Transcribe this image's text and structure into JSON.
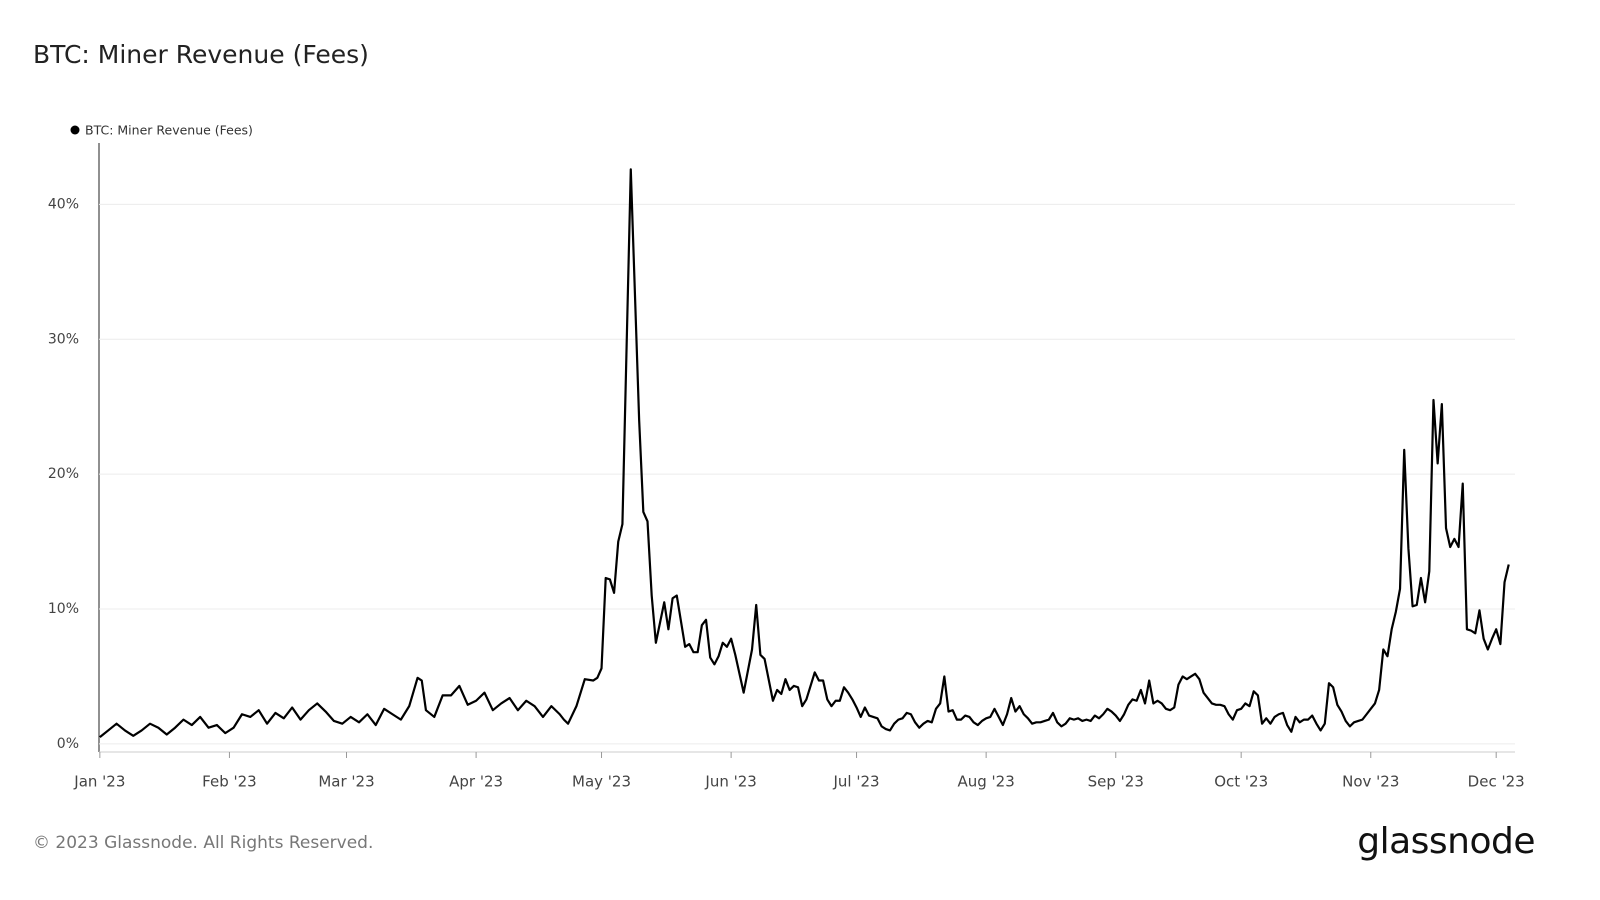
{
  "chart_data": {
    "type": "line",
    "title": "BTC: Miner Revenue (Fees)",
    "x": [
      0,
      2,
      4,
      6,
      8,
      10,
      12,
      14,
      16,
      18,
      20,
      22,
      24,
      26,
      28,
      30,
      32,
      34,
      36,
      38,
      40,
      42,
      44,
      46,
      48,
      50,
      52,
      54,
      56,
      58,
      60,
      62,
      64,
      66,
      68,
      70,
      72,
      74,
      76,
      77,
      78,
      80,
      82,
      84,
      86,
      88,
      90,
      92,
      94,
      96,
      98,
      100,
      102,
      104,
      106,
      108,
      110,
      111,
      112,
      114,
      116,
      118,
      119,
      120,
      121,
      122,
      123,
      124,
      125,
      127,
      129,
      130,
      131,
      132,
      133,
      134,
      135,
      136,
      137,
      138,
      140,
      141,
      142,
      143,
      144,
      145,
      146,
      147,
      148,
      149,
      150,
      151,
      152,
      154,
      156,
      157,
      158,
      159,
      161,
      162,
      163,
      164,
      165,
      166,
      167,
      168,
      169,
      171,
      172,
      173,
      174,
      175,
      176,
      177,
      178,
      179,
      180,
      181,
      182,
      183,
      184,
      185,
      186,
      187,
      188,
      189,
      190,
      191,
      192,
      193,
      194,
      195,
      196,
      197,
      198,
      199,
      200,
      201,
      202,
      203,
      204,
      205,
      206,
      207,
      208,
      209,
      210,
      211,
      212,
      213,
      214,
      215,
      216,
      217,
      218,
      219,
      220,
      221,
      222,
      223,
      224,
      225,
      226,
      227,
      228,
      229,
      230,
      231,
      232,
      233,
      234,
      235,
      236,
      237,
      238,
      239,
      240,
      241,
      242,
      243,
      244,
      245,
      246,
      247,
      248,
      249,
      250,
      251,
      252,
      253,
      254,
      255,
      256,
      257,
      258,
      259,
      260,
      261,
      262,
      263,
      264,
      265,
      266,
      267,
      268,
      269,
      270,
      271,
      272,
      273,
      274,
      275,
      276,
      277,
      278,
      279,
      280,
      281,
      282,
      283,
      284,
      285,
      286,
      287,
      288,
      289,
      290,
      291,
      292,
      293,
      294,
      295,
      296,
      297,
      298,
      299,
      300,
      301,
      302,
      303,
      304,
      305,
      306,
      307,
      308,
      309,
      310,
      311,
      312,
      313,
      314,
      315,
      316,
      317,
      318,
      319,
      320,
      321,
      322,
      323,
      324,
      325,
      326,
      327,
      328,
      329,
      330,
      331,
      332,
      333,
      334,
      335,
      336,
      337
    ],
    "series": [
      {
        "name": "BTC: Miner Revenue (Fees)",
        "color": "#000000",
        "values": [
          0.5,
          1.0,
          1.5,
          1.0,
          0.6,
          1.0,
          1.5,
          1.2,
          0.7,
          1.2,
          1.8,
          1.4,
          2.0,
          1.2,
          1.4,
          0.8,
          1.2,
          2.2,
          2.0,
          2.5,
          1.5,
          2.3,
          1.9,
          2.7,
          1.8,
          2.5,
          3.0,
          2.4,
          1.7,
          1.5,
          2.0,
          1.6,
          2.2,
          1.4,
          2.6,
          2.2,
          1.8,
          2.8,
          4.9,
          4.7,
          2.5,
          2.0,
          3.6,
          3.6,
          4.3,
          2.9,
          3.2,
          3.8,
          2.5,
          3.0,
          3.4,
          2.5,
          3.2,
          2.8,
          2.0,
          2.8,
          2.2,
          1.8,
          1.5,
          2.8,
          4.8,
          4.7,
          4.9,
          5.6,
          12.3,
          12.2,
          11.2,
          15.0,
          16.3,
          42.6,
          24.0,
          17.2,
          16.5,
          11.0,
          7.5,
          9.0,
          10.5,
          8.5,
          10.8,
          11.0,
          7.2,
          7.4,
          6.8,
          6.8,
          8.8,
          9.2,
          6.4,
          5.9,
          6.5,
          7.5,
          7.2,
          7.8,
          6.6,
          3.8,
          7.0,
          10.3,
          6.6,
          6.3,
          3.2,
          4.0,
          3.7,
          4.8,
          4.0,
          4.3,
          4.2,
          2.8,
          3.3,
          5.3,
          4.7,
          4.7,
          3.3,
          2.8,
          3.2,
          3.2,
          4.2,
          3.8,
          3.3,
          2.7,
          2.0,
          2.7,
          2.1,
          2.0,
          1.9,
          1.3,
          1.1,
          1.0,
          1.5,
          1.8,
          1.9,
          2.3,
          2.2,
          1.6,
          1.2,
          1.5,
          1.7,
          1.6,
          2.6,
          3.0,
          5.0,
          2.4,
          2.5,
          1.8,
          1.8,
          2.1,
          2.0,
          1.6,
          1.4,
          1.7,
          1.9,
          2.0,
          2.6,
          2.0,
          1.4,
          2.2,
          3.4,
          2.4,
          2.8,
          2.2,
          1.9,
          1.5,
          1.6,
          1.6,
          1.7,
          1.8,
          2.3,
          1.6,
          1.3,
          1.5,
          1.9,
          1.8,
          1.9,
          1.7,
          1.8,
          1.7,
          2.1,
          1.9,
          2.2,
          2.6,
          2.4,
          2.1,
          1.7,
          2.2,
          2.9,
          3.3,
          3.2,
          4.0,
          3.0,
          4.7,
          3.0,
          3.2,
          3.0,
          2.6,
          2.5,
          2.7,
          4.4,
          5.0,
          4.8,
          5.0,
          5.2,
          4.8,
          3.8,
          3.4,
          3.0,
          2.9,
          2.9,
          2.8,
          2.2,
          1.8,
          2.5,
          2.6,
          3.0,
          2.8,
          3.9,
          3.6,
          1.5,
          1.9,
          1.5,
          2.0,
          2.2,
          2.3,
          1.4,
          0.9,
          2.0,
          1.6,
          1.8,
          1.8,
          2.1,
          1.5,
          1.0,
          1.5,
          4.5,
          4.2,
          2.9,
          2.4,
          1.7,
          1.3,
          1.6,
          1.7,
          1.8,
          2.2,
          2.6,
          3.0,
          4.0,
          7.0,
          6.5,
          8.5,
          9.8,
          11.5,
          21.8,
          14.5,
          10.2,
          10.3,
          12.3,
          10.5,
          12.8,
          25.5,
          20.8,
          25.2,
          16.0,
          14.6,
          15.2,
          14.6,
          19.3,
          8.5,
          8.4,
          8.2,
          9.9,
          7.8,
          7.0,
          7.8,
          8.5,
          7.4,
          12.0,
          13.3
        ]
      }
    ],
    "xlim": [
      -0.2,
      338.5
    ],
    "xticks": [
      {
        "value": 0,
        "label": "Jan '23"
      },
      {
        "value": 31,
        "label": "Feb '23"
      },
      {
        "value": 59,
        "label": "Mar '23"
      },
      {
        "value": 90,
        "label": "Apr '23"
      },
      {
        "value": 120,
        "label": "May '23"
      },
      {
        "value": 151,
        "label": "Jun '23"
      },
      {
        "value": 181,
        "label": "Jul '23"
      },
      {
        "value": 212,
        "label": "Aug '23"
      },
      {
        "value": 243,
        "label": "Sep '23"
      },
      {
        "value": 273,
        "label": "Oct '23"
      },
      {
        "value": 304,
        "label": "Nov '23"
      },
      {
        "value": 334,
        "label": "Dec '23"
      }
    ],
    "ylim": [
      -0.6,
      45
    ],
    "yticks": [
      {
        "value": 0,
        "label": "0%"
      },
      {
        "value": 10,
        "label": "10%"
      },
      {
        "value": 20,
        "label": "20%"
      },
      {
        "value": 30,
        "label": "30%"
      },
      {
        "value": 40,
        "label": "40%"
      }
    ],
    "grid": true,
    "legend": "top-left"
  },
  "footer": "© 2023 Glassnode. All Rights Reserved.",
  "logo": "glassnode"
}
